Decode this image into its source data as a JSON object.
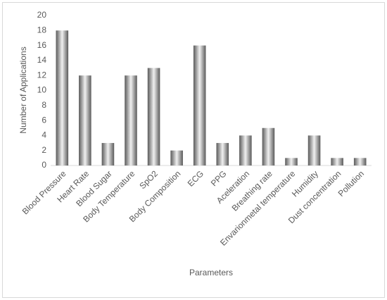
{
  "chart_data": {
    "type": "bar",
    "x_label": "Parameters",
    "y_label": "Number of Applications",
    "categories": [
      "Blood Pressure",
      "Heart Rate",
      "Blood Sugar",
      "Body Temperature",
      "SpO2",
      "Body Composition",
      "ECG",
      "PPG",
      "Aceleration",
      "Breathing rate",
      "Envarionmetal temperature",
      "Humidity",
      "Dust concentration",
      "Pollution"
    ],
    "values": [
      18,
      12,
      3,
      12,
      13,
      2,
      16,
      3,
      4,
      5,
      1,
      4,
      1,
      1
    ],
    "color": "#5a5a5a",
    "ylim": [
      0,
      20
    ],
    "yticks": [
      0,
      2,
      4,
      6,
      8,
      10,
      12,
      14,
      16,
      18,
      20
    ],
    "grid": false
  }
}
